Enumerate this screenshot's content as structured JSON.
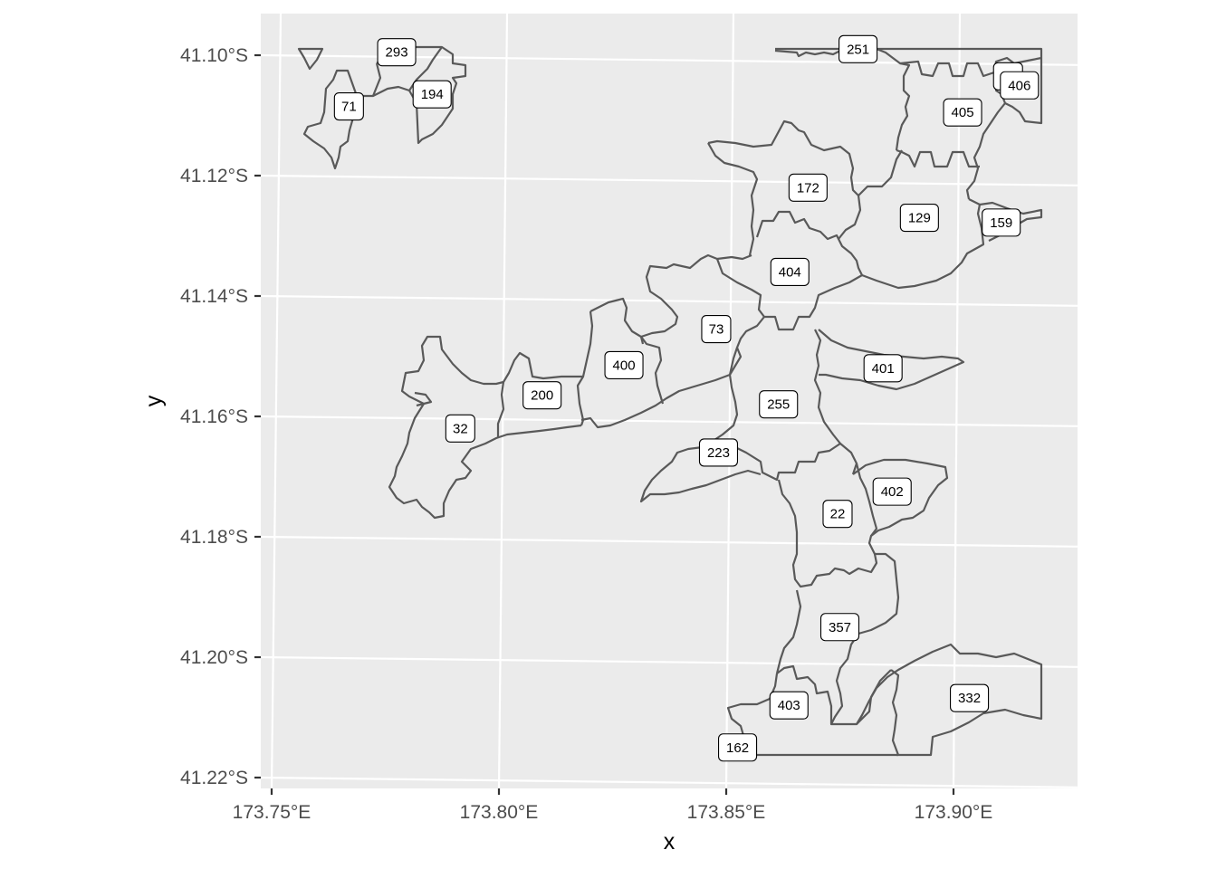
{
  "chart_data": {
    "type": "map",
    "title": "",
    "xlabel": "x",
    "ylabel": "y",
    "x_ticks": [
      {
        "value": 173.75,
        "label": "173.75°E"
      },
      {
        "value": 173.8,
        "label": "173.80°E"
      },
      {
        "value": 173.85,
        "label": "173.85°E"
      },
      {
        "value": 173.9,
        "label": "173.90°E"
      }
    ],
    "y_ticks": [
      {
        "value": -41.1,
        "label": "41.10°S"
      },
      {
        "value": -41.12,
        "label": "41.12°S"
      },
      {
        "value": -41.14,
        "label": "41.14°S"
      },
      {
        "value": -41.16,
        "label": "41.16°S"
      },
      {
        "value": -41.18,
        "label": "41.18°S"
      },
      {
        "value": -41.2,
        "label": "41.20°S"
      },
      {
        "value": -41.22,
        "label": "41.22°S"
      }
    ],
    "xlim": [
      173.7475,
      173.9275
    ],
    "ylim": [
      -41.2215,
      -41.0935
    ],
    "grid": true,
    "region_labels": [
      {
        "label": "293",
        "lon": 173.7775,
        "lat": -41.0995
      },
      {
        "label": "71",
        "lon": 173.767,
        "lat": -41.1085
      },
      {
        "label": "194",
        "lon": 173.7853,
        "lat": -41.1065
      },
      {
        "label": "251",
        "lon": 173.879,
        "lat": -41.099
      },
      {
        "label": "48",
        "lon": 173.912,
        "lat": -41.1035
      },
      {
        "label": "406",
        "lon": 173.9145,
        "lat": -41.105
      },
      {
        "label": "405",
        "lon": 173.902,
        "lat": -41.1095
      },
      {
        "label": "172",
        "lon": 173.868,
        "lat": -41.122
      },
      {
        "label": "129",
        "lon": 173.8925,
        "lat": -41.127
      },
      {
        "label": "159",
        "lon": 173.9105,
        "lat": -41.1278
      },
      {
        "label": "404",
        "lon": 173.864,
        "lat": -41.136
      },
      {
        "label": "73",
        "lon": 173.8478,
        "lat": -41.1455
      },
      {
        "label": "401",
        "lon": 173.8845,
        "lat": -41.152
      },
      {
        "label": "400",
        "lon": 173.8275,
        "lat": -41.1515
      },
      {
        "label": "200",
        "lon": 173.8095,
        "lat": -41.1565
      },
      {
        "label": "255",
        "lon": 173.8615,
        "lat": -41.158
      },
      {
        "label": "32",
        "lon": 173.7915,
        "lat": -41.162
      },
      {
        "label": "223",
        "lon": 173.8483,
        "lat": -41.166
      },
      {
        "label": "402",
        "lon": 173.8865,
        "lat": -41.1725
      },
      {
        "label": "22",
        "lon": 173.8745,
        "lat": -41.1762
      },
      {
        "label": "357",
        "lon": 173.875,
        "lat": -41.195
      },
      {
        "label": "332",
        "lon": 173.9035,
        "lat": -41.2068
      },
      {
        "label": "403",
        "lon": 173.8638,
        "lat": -41.208
      },
      {
        "label": "162",
        "lon": 173.8525,
        "lat": -41.215
      }
    ]
  }
}
